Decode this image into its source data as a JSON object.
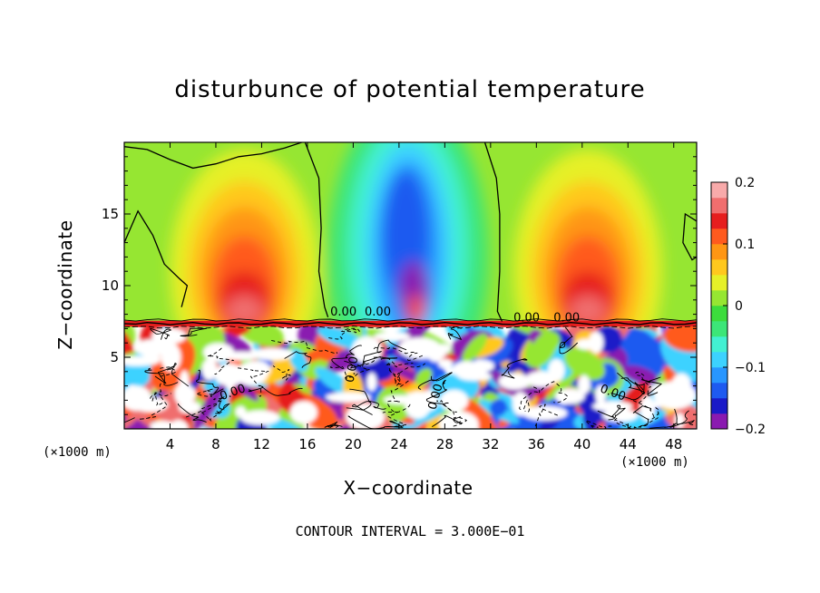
{
  "chart_data": {
    "type": "heatmap",
    "title": "disturbunce of potential temperature",
    "xlabel": "X−coordinate",
    "ylabel": "Z−coordinate",
    "x_unit": "(×1000 m)",
    "x_unit_right": "(×1000 m)",
    "footer": "CONTOUR INTERVAL = 3.000E−01",
    "xlim": [
      0,
      50
    ],
    "ylim": [
      0,
      20
    ],
    "x_ticks": [
      "4",
      "8",
      "12",
      "16",
      "20",
      "24",
      "28",
      "32",
      "36",
      "40",
      "44",
      "48"
    ],
    "x_tick_values": [
      4,
      8,
      12,
      16,
      20,
      24,
      28,
      32,
      36,
      40,
      44,
      48
    ],
    "y_ticks": [
      "5",
      "10",
      "15"
    ],
    "y_tick_values": [
      5,
      10,
      15
    ],
    "colorbar": {
      "range": [
        -0.2,
        0.2
      ],
      "tick_labels": [
        "0.2",
        "0.1",
        "0",
        "−0.1",
        "−0.2"
      ],
      "tick_values": [
        0.2,
        0.1,
        0,
        -0.1,
        -0.2
      ],
      "colors": [
        "#8a1ab0",
        "#1a1ac8",
        "#1e5af0",
        "#2896ff",
        "#3cd2ff",
        "#42f0d2",
        "#3ce678",
        "#3cdc3c",
        "#96e632",
        "#e6f028",
        "#ffc81e",
        "#ff9614",
        "#ff5a1e",
        "#e61e1e",
        "#f06e6e",
        "#f8aaaa"
      ]
    },
    "contour_labels": [
      "0.00",
      "0.00",
      "0.00",
      "0.00",
      "0.00",
      "0.00",
      "0.00",
      "0.00"
    ],
    "features": [
      {
        "name": "warm anomaly (left upper)",
        "x": 10.5,
        "z": 11.5,
        "value": 0.13
      },
      {
        "name": "cold anomaly (center upper)",
        "x": 24.5,
        "z": 14,
        "value": -0.18
      },
      {
        "name": "warm anomaly (right upper)",
        "x": 40.5,
        "z": 11.5,
        "value": 0.13
      },
      {
        "name": "tropopause-like interface",
        "z": 7.2
      },
      {
        "name": "turbulent mixed layer",
        "z_range": [
          0,
          7.2
        ]
      }
    ]
  }
}
